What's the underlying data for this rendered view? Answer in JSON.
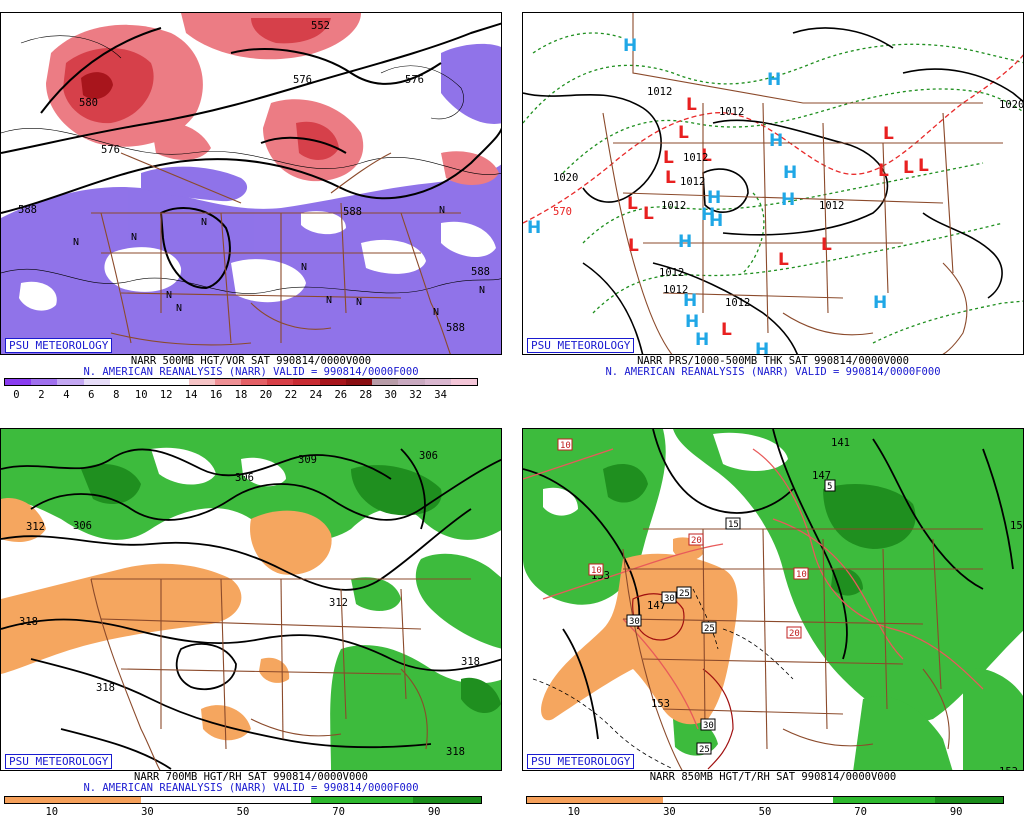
{
  "panels": [
    {
      "id": "vort500",
      "badge": "PSU METEOROLOGY",
      "caption1": "NARR 500MB HGT/VOR SAT 990814/0000V000",
      "caption2": "N. AMERICAN REANALYSIS (NARR) VALID = 990814/0000F000",
      "colorbar_colors": [
        "#8a3cf0",
        "#a070ee",
        "#c3a7f2",
        "#e6dcf8",
        "#ffffff",
        "#ffffff",
        "#ffffff",
        "#f6c4c6",
        "#ef9095",
        "#e46066",
        "#d84048",
        "#c92c34",
        "#a8151c",
        "#8a0e12",
        "#b89ca8",
        "#c9a9c0",
        "#d9b6cf",
        "#f4c6d8"
      ],
      "colorbar_ticks": [
        "0",
        "2",
        "4",
        "6",
        "8",
        "10",
        "12",
        "14",
        "16",
        "18",
        "20",
        "22",
        "24",
        "26",
        "28",
        "30",
        "32",
        "34"
      ],
      "contour_labels": [
        "552",
        "576",
        "576",
        "580",
        "588",
        "588",
        "588",
        "588",
        "576"
      ],
      "marker_text": "N"
    },
    {
      "id": "prs_thk",
      "badge": "PSU METEOROLOGY",
      "caption1": "NARR PRS/1000-500MB THK SAT 990814/0000V000",
      "caption2": "N. AMERICAN REANALYSIS (NARR) VALID = 990814/0000F000",
      "contour_labels": [
        "1012",
        "1012",
        "1020",
        "1012",
        "1012",
        "1012",
        "1012",
        "1020",
        "1012",
        "1012",
        "1012",
        "570"
      ],
      "high_text": "H",
      "low_text": "L"
    },
    {
      "id": "rh700",
      "badge": "PSU METEOROLOGY",
      "caption1": "NARR 700MB HGT/RH SAT 990814/0000V000",
      "caption2": "N. AMERICAN REANALYSIS (NARR) VALID = 990814/0000F000",
      "colorbar_colors": [
        "#f5a05a",
        "#f5a05a",
        "#f5a05a",
        "#f5a05a",
        "#ffffff",
        "#ffffff",
        "#ffffff",
        "#ffffff",
        "#ffffff",
        "#2eb82e",
        "#2eb82e",
        "#2eb82e",
        "#1a8c1a",
        "#1a8c1a"
      ],
      "colorbar_ticks": [
        "10",
        "30",
        "50",
        "70",
        "90"
      ],
      "contour_labels": [
        "306",
        "306",
        "309",
        "306",
        "312",
        "318",
        "312",
        "318",
        "318",
        "318",
        "306"
      ]
    },
    {
      "id": "rh850",
      "badge": "PSU METEOROLOGY",
      "caption1": "NARR 850MB HGT/T/RH SAT 990814/0000V000",
      "caption2": "",
      "colorbar_colors": [
        "#f5a05a",
        "#f5a05a",
        "#f5a05a",
        "#f5a05a",
        "#ffffff",
        "#ffffff",
        "#ffffff",
        "#ffffff",
        "#ffffff",
        "#2eb82e",
        "#2eb82e",
        "#2eb82e",
        "#1a8c1a",
        "#1a8c1a"
      ],
      "colorbar_ticks": [
        "10",
        "30",
        "50",
        "70",
        "90"
      ],
      "contour_labels": [
        "141",
        "147",
        "153",
        "147",
        "153",
        "15",
        "153"
      ],
      "temp_labels": [
        "10",
        "10",
        "20",
        "15",
        "5",
        "10",
        "20",
        "30",
        "30",
        "25",
        "25",
        "30",
        "25"
      ]
    }
  ]
}
